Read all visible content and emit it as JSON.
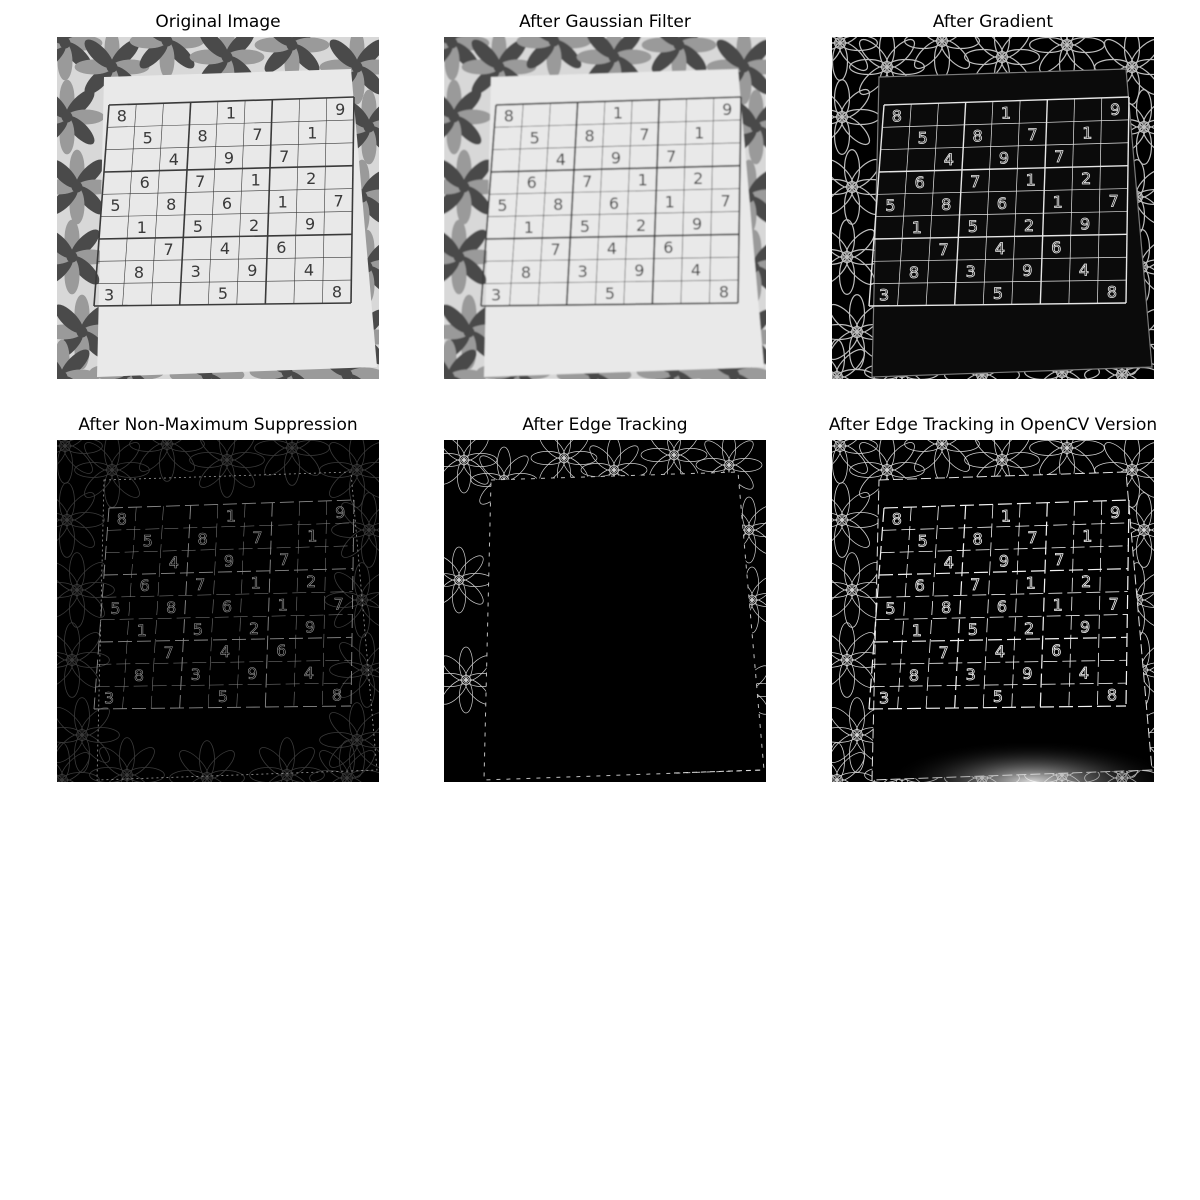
{
  "panels": [
    {
      "title": "Original Image",
      "image": "sudoku-photo-grayscale"
    },
    {
      "title": "After Gaussian Filter",
      "image": "sudoku-photo-blurred"
    },
    {
      "title": "After Gradient",
      "image": "sudoku-gradient-magnitude"
    },
    {
      "title": "After Non-Maximum Suppression",
      "image": "sudoku-thin-edges"
    },
    {
      "title": "After Edge Tracking",
      "image": "sudoku-edge-tracking-result"
    },
    {
      "title": "After Edge Tracking in OpenCV Version",
      "image": "sudoku-opencv-canny-result"
    }
  ],
  "sudoku": {
    "digits": [
      [
        0,
        0,
        "8"
      ],
      [
        0,
        4,
        "1"
      ],
      [
        0,
        8,
        "9"
      ],
      [
        1,
        1,
        "5"
      ],
      [
        1,
        3,
        "8"
      ],
      [
        1,
        5,
        "7"
      ],
      [
        1,
        7,
        "1"
      ],
      [
        2,
        2,
        "4"
      ],
      [
        2,
        4,
        "9"
      ],
      [
        2,
        6,
        "7"
      ],
      [
        3,
        1,
        "6"
      ],
      [
        3,
        3,
        "7"
      ],
      [
        3,
        5,
        "1"
      ],
      [
        3,
        7,
        "2"
      ],
      [
        4,
        0,
        "5"
      ],
      [
        4,
        2,
        "8"
      ],
      [
        4,
        4,
        "6"
      ],
      [
        4,
        6,
        "1"
      ],
      [
        4,
        8,
        "7"
      ],
      [
        5,
        1,
        "1"
      ],
      [
        5,
        3,
        "5"
      ],
      [
        5,
        5,
        "2"
      ],
      [
        5,
        7,
        "9"
      ],
      [
        6,
        2,
        "7"
      ],
      [
        6,
        4,
        "4"
      ],
      [
        6,
        6,
        "6"
      ],
      [
        7,
        1,
        "8"
      ],
      [
        7,
        3,
        "3"
      ],
      [
        7,
        5,
        "9"
      ],
      [
        7,
        7,
        "4"
      ],
      [
        8,
        0,
        "3"
      ],
      [
        8,
        4,
        "5"
      ],
      [
        8,
        8,
        "8"
      ]
    ]
  },
  "colors": {
    "paper": "#e9e9e9",
    "ink": "#3a3a3a",
    "petal_dark": "#4a4a4a",
    "petal_light": "#9a9a9a",
    "tablecloth": "#d8d8d8",
    "edge": "#ffffff",
    "edge_bg": "#000000"
  }
}
